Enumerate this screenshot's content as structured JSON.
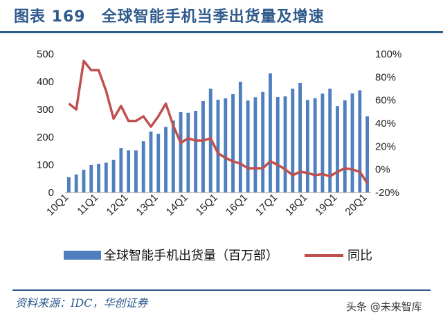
{
  "header": {
    "title": "图表 169　全球智能手机当季出货量及增速"
  },
  "footer": {
    "source": "资料来源：IDC，华创证券",
    "watermark": "头条 @未来智库"
  },
  "colors": {
    "bar": "#4f7fbf",
    "line": "#c0504d",
    "title": "#2e5a8c"
  },
  "chart_data": {
    "type": "bar",
    "title": "全球智能手机当季出货量及增速",
    "categories": [
      "10Q1",
      "10Q2",
      "10Q3",
      "10Q4",
      "11Q1",
      "11Q2",
      "11Q3",
      "11Q4",
      "12Q1",
      "12Q2",
      "12Q3",
      "12Q4",
      "13Q1",
      "13Q2",
      "13Q3",
      "13Q4",
      "14Q1",
      "14Q2",
      "14Q3",
      "14Q4",
      "15Q1",
      "15Q2",
      "15Q3",
      "15Q4",
      "16Q1",
      "16Q2",
      "16Q3",
      "16Q4",
      "17Q1",
      "17Q2",
      "17Q3",
      "17Q4",
      "18Q1",
      "18Q2",
      "18Q3",
      "18Q4",
      "19Q1",
      "19Q2",
      "19Q3",
      "19Q4",
      "20Q1"
    ],
    "x_tick_labels": [
      "10Q1",
      "11Q1",
      "12Q1",
      "13Q1",
      "14Q1",
      "15Q1",
      "16Q1",
      "17Q1",
      "18Q1",
      "19Q1",
      "20Q1"
    ],
    "y_left": {
      "ticks": [
        "0",
        "100",
        "200",
        "300",
        "400",
        "500"
      ],
      "ylim": [
        0,
        500
      ]
    },
    "y_right": {
      "ticks": [
        "-20%",
        "0%",
        "20%",
        "40%",
        "60%",
        "80%",
        "100%"
      ],
      "ylim": [
        -20,
        100
      ]
    },
    "legend_position": "bottom",
    "series": [
      {
        "name": "全球智能手机出货量（百万部）",
        "type": "bar",
        "axis": "left",
        "values": [
          55,
          65,
          82,
          100,
          103,
          108,
          118,
          160,
          152,
          152,
          185,
          220,
          212,
          237,
          260,
          290,
          288,
          295,
          330,
          375,
          335,
          340,
          355,
          400,
          332,
          344,
          363,
          430,
          345,
          347,
          375,
          395,
          334,
          340,
          357,
          375,
          312,
          333,
          358,
          369,
          275
        ]
      },
      {
        "name": "同比",
        "type": "line",
        "axis": "right",
        "values": [
          57,
          52,
          94,
          86,
          86,
          68,
          44,
          55,
          42,
          42,
          46,
          37,
          46,
          57,
          38,
          23,
          27,
          25,
          25,
          27,
          14,
          10,
          7,
          5,
          1,
          1,
          1,
          7,
          4,
          0,
          -5,
          -2,
          -3,
          -5,
          -4,
          -6,
          -2,
          1,
          0,
          -2,
          -12
        ]
      }
    ]
  }
}
